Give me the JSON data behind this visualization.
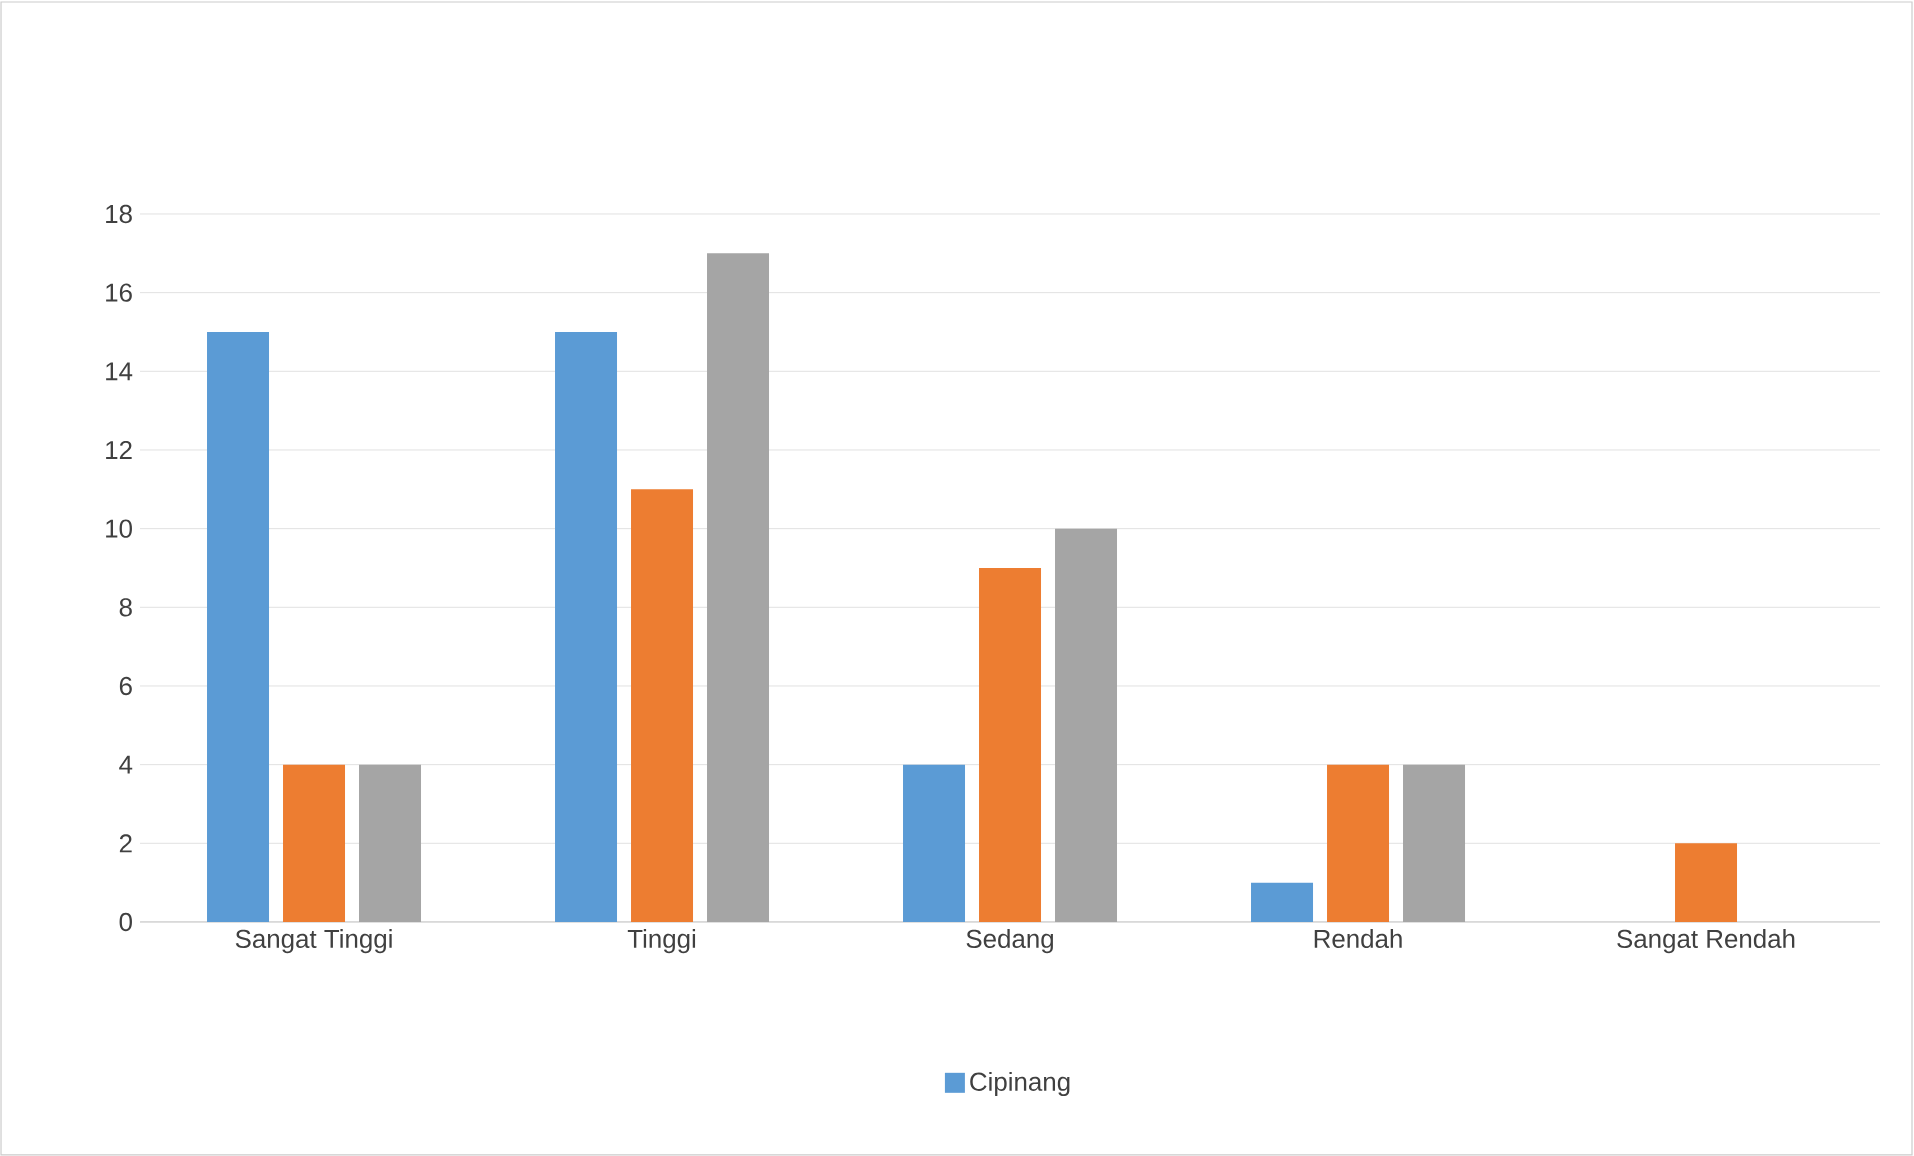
{
  "chart_data": {
    "type": "bar",
    "categories": [
      "Sangat Tinggi",
      "Tinggi",
      "Sedang",
      "Rendah",
      "Sangat Rendah"
    ],
    "series": [
      {
        "name": "Cipinang",
        "color": "#5b9bd5",
        "values": [
          15,
          15,
          4,
          1,
          0
        ]
      },
      {
        "color": "#ed7d31",
        "values": [
          4,
          11,
          9,
          4,
          2
        ]
      },
      {
        "color": "#a5a5a5",
        "values": [
          4,
          17,
          10,
          4,
          0
        ]
      }
    ],
    "ylim": [
      0,
      18
    ],
    "yticks": [
      0,
      2,
      4,
      6,
      8,
      10,
      12,
      14,
      16,
      18
    ],
    "grid": "y",
    "legend": "bottom"
  }
}
